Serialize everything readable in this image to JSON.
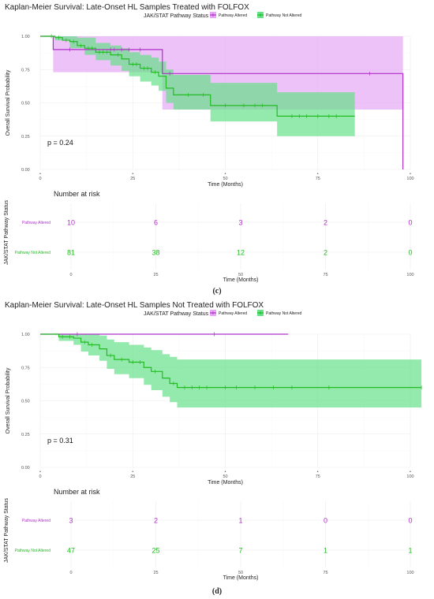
{
  "colors": {
    "altered": "#b030c8",
    "altered_fill": "#e6a8f5",
    "not_altered": "#22bb22",
    "not_altered_fill": "#66e08a"
  },
  "chart_data": [
    {
      "type": "line",
      "step": true,
      "title": "Kaplan-Meier Survival: Late-Onset HL Samples Treated with FOLFOX",
      "xlabel": "Time (Months)",
      "ylabel": "Overall Survival Probability",
      "xlim": [
        0,
        100
      ],
      "ylim": [
        0,
        1
      ],
      "xticks": [
        "0",
        "25",
        "50",
        "75",
        "100"
      ],
      "yticks": [
        "0.00",
        "0.25",
        "0.50",
        "0.75",
        "1.00"
      ],
      "legend_title": "JAK/STAT Pathway Status",
      "legend_position": "top",
      "pvalue": "p = 0.24",
      "series": [
        {
          "name": "Pathway Altered",
          "color_key": "altered",
          "steps": [
            [
              0,
              1.0
            ],
            [
              3.5,
              0.9
            ],
            [
              33,
              0.72
            ],
            [
              98,
              0.0
            ]
          ],
          "end_x": 98,
          "ci_lower": [
            [
              0,
              1.0
            ],
            [
              3.5,
              0.73
            ],
            [
              33,
              0.45
            ],
            [
              98,
              0.45
            ]
          ],
          "ci_upper": [
            [
              0,
              1.0
            ],
            [
              98,
              1.0
            ]
          ],
          "censor_x": [
            8,
            19,
            20,
            22,
            24,
            27,
            35,
            89
          ]
        },
        {
          "name": "Pathway Not Altered",
          "color_key": "not_altered",
          "steps": [
            [
              0,
              1.0
            ],
            [
              4,
              0.99
            ],
            [
              6,
              0.97
            ],
            [
              8,
              0.96
            ],
            [
              10,
              0.93
            ],
            [
              12,
              0.91
            ],
            [
              15,
              0.88
            ],
            [
              19,
              0.86
            ],
            [
              22,
              0.83
            ],
            [
              24,
              0.79
            ],
            [
              27,
              0.76
            ],
            [
              30,
              0.73
            ],
            [
              32,
              0.7
            ],
            [
              34,
              0.61
            ],
            [
              36,
              0.56
            ],
            [
              46,
              0.48
            ],
            [
              64,
              0.4
            ],
            [
              85,
              0.4
            ]
          ],
          "end_x": 85,
          "ci_lower": [
            [
              0,
              1.0
            ],
            [
              4,
              0.97
            ],
            [
              8,
              0.91
            ],
            [
              12,
              0.86
            ],
            [
              15,
              0.82
            ],
            [
              19,
              0.78
            ],
            [
              22,
              0.74
            ],
            [
              24,
              0.7
            ],
            [
              27,
              0.66
            ],
            [
              30,
              0.63
            ],
            [
              32,
              0.59
            ],
            [
              34,
              0.5
            ],
            [
              36,
              0.45
            ],
            [
              46,
              0.36
            ],
            [
              64,
              0.25
            ],
            [
              85,
              0.25
            ]
          ],
          "ci_upper": [
            [
              0,
              1.0
            ],
            [
              10,
              0.99
            ],
            [
              15,
              0.95
            ],
            [
              19,
              0.93
            ],
            [
              22,
              0.91
            ],
            [
              24,
              0.88
            ],
            [
              27,
              0.86
            ],
            [
              30,
              0.84
            ],
            [
              32,
              0.81
            ],
            [
              34,
              0.75
            ],
            [
              36,
              0.71
            ],
            [
              46,
              0.65
            ],
            [
              64,
              0.58
            ],
            [
              85,
              0.58
            ]
          ],
          "censor_x": [
            3,
            5,
            7,
            9,
            11,
            13,
            14,
            16,
            17,
            18,
            21,
            25,
            26,
            28,
            29,
            31,
            40,
            44,
            50,
            55,
            58,
            60,
            68,
            70,
            72,
            75,
            78,
            80
          ]
        }
      ],
      "risk_table": {
        "title": "Number at risk",
        "ylabel": "JAK/STAT Pathway Status",
        "xlabel": "Time (Months)",
        "xticks": [
          "0",
          "25",
          "50",
          "75",
          "100"
        ],
        "rows": [
          {
            "label": "Pathway Altered",
            "color_key": "altered",
            "values": [
              "10",
              "6",
              "3",
              "2",
              "0"
            ]
          },
          {
            "label": "Pathway Not Altered",
            "color_key": "not_altered",
            "values": [
              "81",
              "38",
              "12",
              "2",
              "0"
            ]
          }
        ]
      },
      "caption": "(c)"
    },
    {
      "type": "line",
      "step": true,
      "title": "Kaplan-Meier Survival: Late-Onset HL Samples Not Treated with FOLFOX",
      "xlabel": "Time (Months)",
      "ylabel": "Overall Survival Probability",
      "xlim": [
        0,
        100
      ],
      "ylim": [
        0,
        1
      ],
      "xticks": [
        "0",
        "25",
        "50",
        "75",
        "100"
      ],
      "yticks": [
        "0.00",
        "0.25",
        "0.50",
        "0.75",
        "1.00"
      ],
      "legend_title": "JAK/STAT Pathway Status",
      "legend_position": "top",
      "pvalue": "p = 0.31",
      "series": [
        {
          "name": "Pathway Altered",
          "color_key": "altered",
          "steps": [
            [
              0,
              1.0
            ],
            [
              67,
              1.0
            ]
          ],
          "end_x": 67,
          "ci_lower": [],
          "ci_upper": [],
          "censor_x": [
            10,
            47
          ]
        },
        {
          "name": "Pathway Not Altered",
          "color_key": "not_altered",
          "steps": [
            [
              0,
              1.0
            ],
            [
              5,
              0.98
            ],
            [
              9,
              0.97
            ],
            [
              11,
              0.94
            ],
            [
              13,
              0.92
            ],
            [
              16,
              0.89
            ],
            [
              18,
              0.84
            ],
            [
              20,
              0.81
            ],
            [
              24,
              0.79
            ],
            [
              28,
              0.75
            ],
            [
              30,
              0.72
            ],
            [
              33,
              0.67
            ],
            [
              35,
              0.63
            ],
            [
              37,
              0.6
            ],
            [
              103,
              0.6
            ]
          ],
          "end_x": 103,
          "ci_lower": [
            [
              0,
              1.0
            ],
            [
              5,
              0.95
            ],
            [
              9,
              0.92
            ],
            [
              11,
              0.87
            ],
            [
              13,
              0.84
            ],
            [
              16,
              0.8
            ],
            [
              18,
              0.74
            ],
            [
              20,
              0.7
            ],
            [
              24,
              0.67
            ],
            [
              28,
              0.62
            ],
            [
              30,
              0.58
            ],
            [
              33,
              0.53
            ],
            [
              35,
              0.49
            ],
            [
              37,
              0.45
            ],
            [
              103,
              0.45
            ]
          ],
          "ci_upper": [
            [
              0,
              1.0
            ],
            [
              16,
              0.99
            ],
            [
              18,
              0.96
            ],
            [
              20,
              0.94
            ],
            [
              24,
              0.92
            ],
            [
              28,
              0.9
            ],
            [
              30,
              0.88
            ],
            [
              33,
              0.85
            ],
            [
              35,
              0.83
            ],
            [
              37,
              0.81
            ],
            [
              103,
              0.81
            ]
          ],
          "censor_x": [
            6,
            8,
            12,
            14,
            19,
            22,
            25,
            27,
            31,
            36,
            39,
            41,
            43,
            45,
            50,
            53,
            58,
            63,
            68,
            78,
            103
          ]
        }
      ],
      "risk_table": {
        "title": "Number at risk",
        "ylabel": "JAK/STAT Pathway Status",
        "xlabel": "Time (Months)",
        "xticks": [
          "0",
          "25",
          "50",
          "75",
          "100"
        ],
        "rows": [
          {
            "label": "Pathway Altered",
            "color_key": "altered",
            "values": [
              "3",
              "2",
              "1",
              "0",
              "0"
            ]
          },
          {
            "label": "Pathway Not Altered",
            "color_key": "not_altered",
            "values": [
              "47",
              "25",
              "7",
              "1",
              "1"
            ]
          }
        ]
      },
      "caption": "(d)"
    }
  ]
}
